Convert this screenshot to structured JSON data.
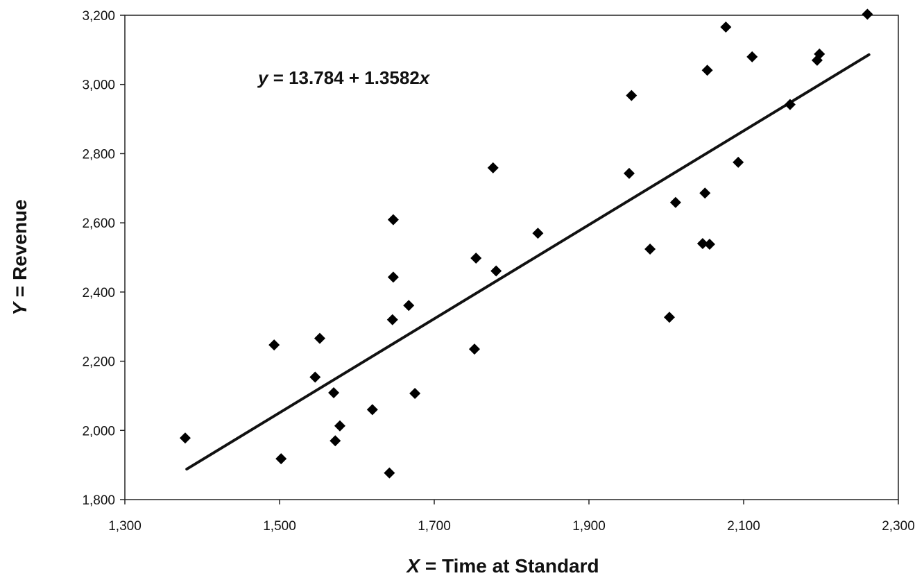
{
  "chart_data": {
    "type": "scatter",
    "title": "",
    "xlabel": "Time at Standard",
    "xlabel_var": "X",
    "xlabel_eq": "=",
    "ylabel": "Revenue",
    "ylabel_var": "Y",
    "ylabel_eq": "=",
    "xlim": [
      1300,
      2300
    ],
    "ylim": [
      1800,
      3200
    ],
    "x_ticks": [
      1300,
      1500,
      1700,
      1900,
      2100,
      2300
    ],
    "x_tick_labels": [
      "1,300",
      "1,500",
      "1,700",
      "1,900",
      "2,100",
      "2,300"
    ],
    "y_ticks": [
      1800,
      2000,
      2200,
      2400,
      2600,
      2800,
      3000,
      3200
    ],
    "y_tick_labels": [
      "1,800",
      "2,000",
      "2,200",
      "2,400",
      "2,600",
      "2,800",
      "3,000",
      "3,200"
    ],
    "grid": false,
    "legend": "none",
    "marker": "diamond",
    "points": [
      {
        "x": 1378,
        "y": 1978
      },
      {
        "x": 1493,
        "y": 2247
      },
      {
        "x": 1502,
        "y": 1918
      },
      {
        "x": 1546,
        "y": 2154
      },
      {
        "x": 1552,
        "y": 2266
      },
      {
        "x": 1570,
        "y": 2109
      },
      {
        "x": 1572,
        "y": 1970
      },
      {
        "x": 1578,
        "y": 2013
      },
      {
        "x": 1620,
        "y": 2060
      },
      {
        "x": 1642,
        "y": 1877
      },
      {
        "x": 1646,
        "y": 2320
      },
      {
        "x": 1647,
        "y": 2443
      },
      {
        "x": 1647,
        "y": 2609
      },
      {
        "x": 1667,
        "y": 2361
      },
      {
        "x": 1675,
        "y": 2107
      },
      {
        "x": 1752,
        "y": 2235
      },
      {
        "x": 1754,
        "y": 2498
      },
      {
        "x": 1776,
        "y": 2759
      },
      {
        "x": 1780,
        "y": 2461
      },
      {
        "x": 1834,
        "y": 2570
      },
      {
        "x": 1952,
        "y": 2743
      },
      {
        "x": 1955,
        "y": 2968
      },
      {
        "x": 1979,
        "y": 2524
      },
      {
        "x": 2004,
        "y": 2327
      },
      {
        "x": 2012,
        "y": 2659
      },
      {
        "x": 2047,
        "y": 2540
      },
      {
        "x": 2050,
        "y": 2686
      },
      {
        "x": 2053,
        "y": 3041
      },
      {
        "x": 2056,
        "y": 2538
      },
      {
        "x": 2077,
        "y": 3166
      },
      {
        "x": 2093,
        "y": 2775
      },
      {
        "x": 2111,
        "y": 3080
      },
      {
        "x": 2160,
        "y": 2942
      },
      {
        "x": 2195,
        "y": 3070
      },
      {
        "x": 2198,
        "y": 3088
      },
      {
        "x": 2260,
        "y": 3203
      }
    ],
    "trendline": {
      "intercept": 13.784,
      "slope": 1.3582,
      "x_range": [
        1380,
        2262
      ],
      "equation_lhs": "y",
      "equation_mid": " = 13.784 + 1.3582",
      "equation_var": "x"
    }
  }
}
